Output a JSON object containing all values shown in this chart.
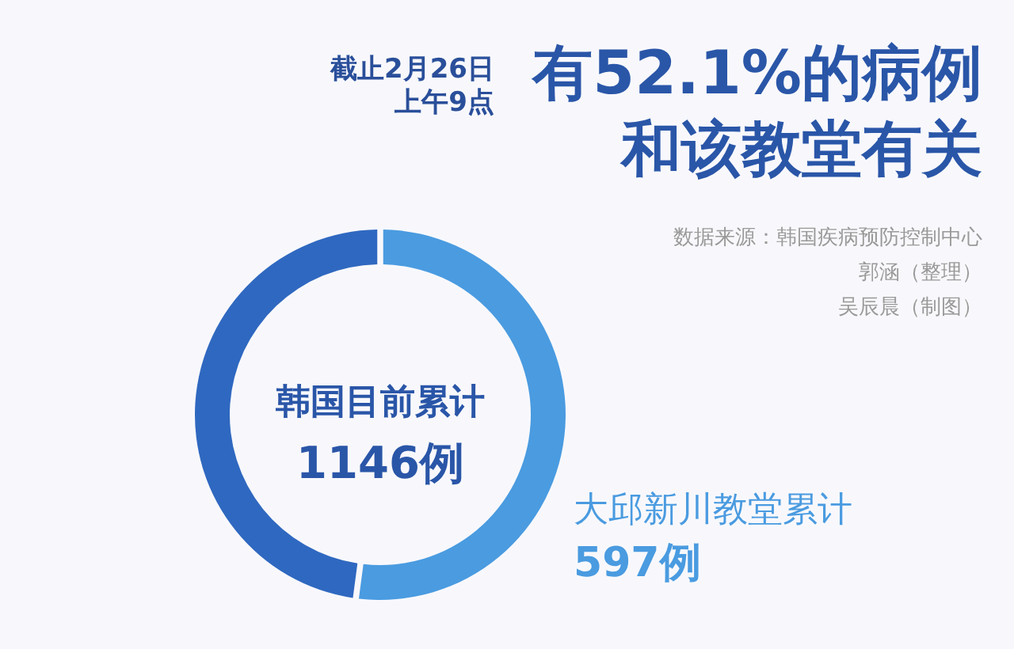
{
  "chart_data": {
    "type": "donut",
    "title": "有52.1%的病例和该教堂有关",
    "subtitle": "截止2月26日上午9点",
    "categories": [
      "大邱新川教堂累计",
      null
    ],
    "values": [
      52.1,
      47.9
    ],
    "colors": [
      "#4a9be0",
      "#2f68c0"
    ],
    "annotations": [
      "数据来源：韩国疾病预防控制中心",
      "郭涵（整理）",
      "吴辰晨（制图）",
      "韩国目前累计",
      "1146例",
      "597例"
    ]
  }
}
